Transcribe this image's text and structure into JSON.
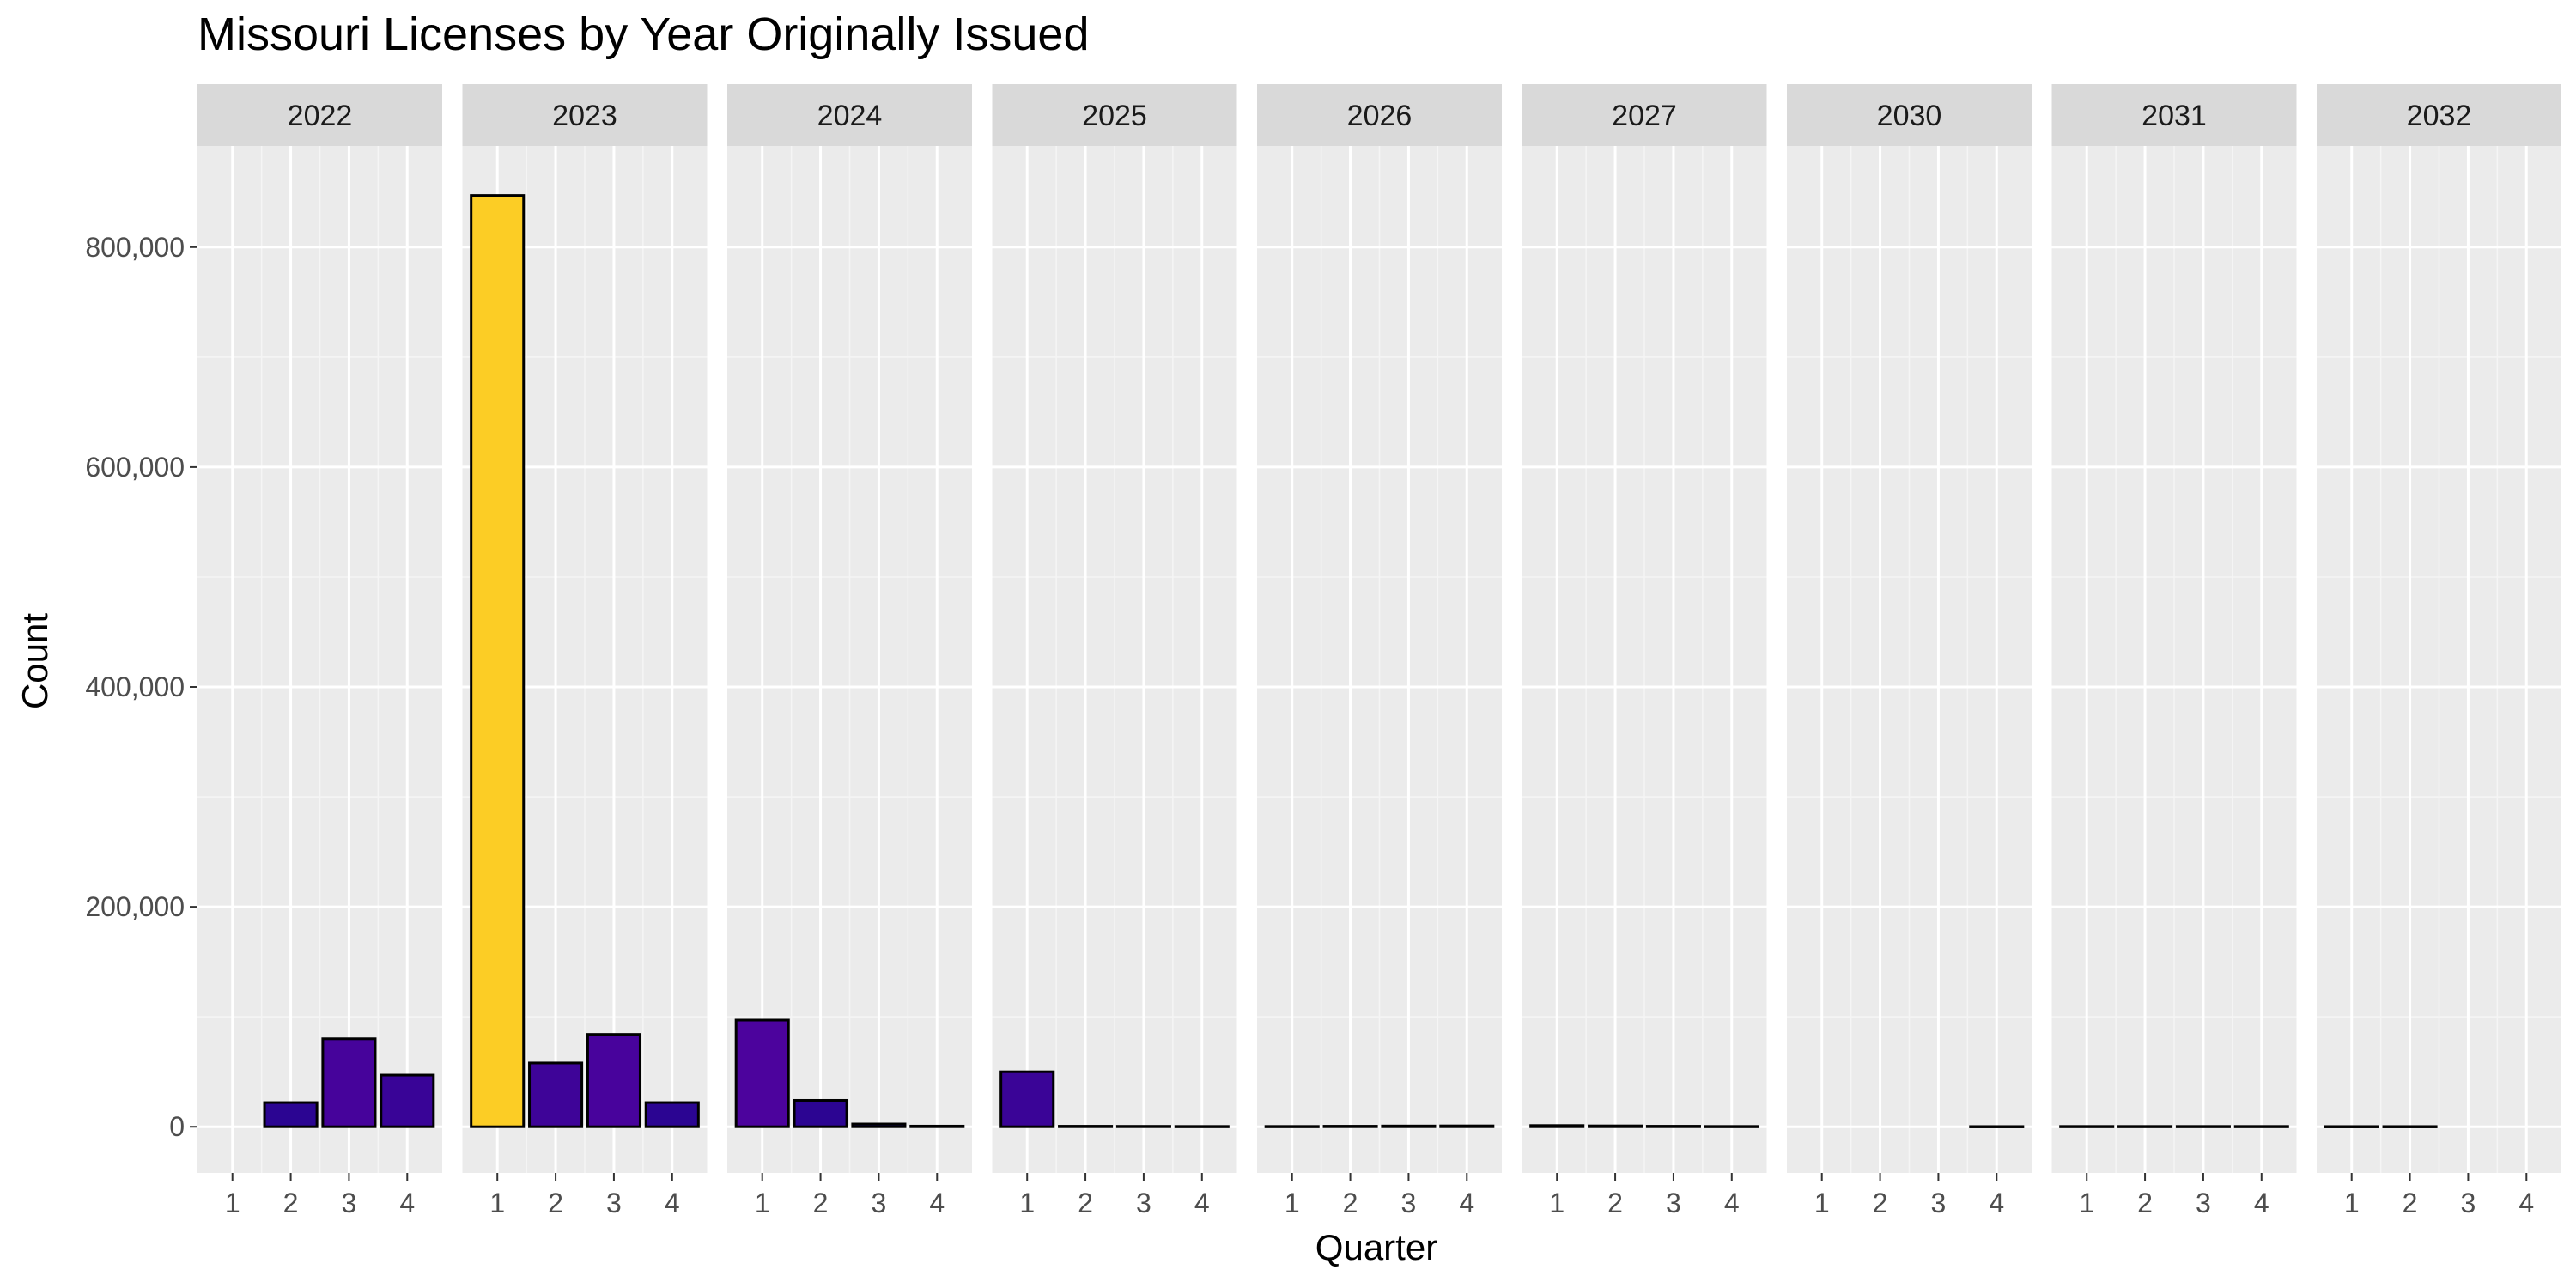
{
  "chart_data": {
    "type": "bar",
    "title": "Missouri Licenses by Year Originally Issued",
    "xlabel": "Quarter",
    "ylabel": "Count",
    "ylim": [
      -42000,
      892000
    ],
    "yticks": [
      0,
      200000,
      400000,
      600000,
      800000
    ],
    "ytick_labels": [
      "0",
      "200,000",
      "400,000",
      "600,000",
      "800,000"
    ],
    "categories": [
      "1",
      "2",
      "3",
      "4"
    ],
    "grid": true,
    "legend": "none",
    "fill_scale": {
      "low": "#0d0887",
      "mid": "#6a00a8",
      "high": "#fccd25"
    },
    "facets": [
      {
        "label": "2022",
        "values": [
          null,
          22000,
          80000,
          47000
        ]
      },
      {
        "label": "2023",
        "values": [
          847000,
          58000,
          84000,
          22000
        ]
      },
      {
        "label": "2024",
        "values": [
          97000,
          24000,
          2500,
          600
        ]
      },
      {
        "label": "2025",
        "values": [
          50000,
          500,
          400,
          300
        ]
      },
      {
        "label": "2026",
        "values": [
          300,
          500,
          700,
          800
        ]
      },
      {
        "label": "2027",
        "values": [
          1100,
          800,
          500,
          300
        ]
      },
      {
        "label": "2030",
        "values": [
          null,
          null,
          null,
          200
        ]
      },
      {
        "label": "2031",
        "values": [
          300,
          300,
          300,
          300
        ]
      },
      {
        "label": "2032",
        "values": [
          200,
          200,
          null,
          null
        ]
      }
    ]
  },
  "colors": {
    "panel_background": "#ebebeb",
    "grid_major": "#ffffff",
    "grid_minor": "#f5f5f5",
    "strip_background": "#d9d9d9",
    "bar_outline": "#000000",
    "tick_mark": "#333333"
  }
}
